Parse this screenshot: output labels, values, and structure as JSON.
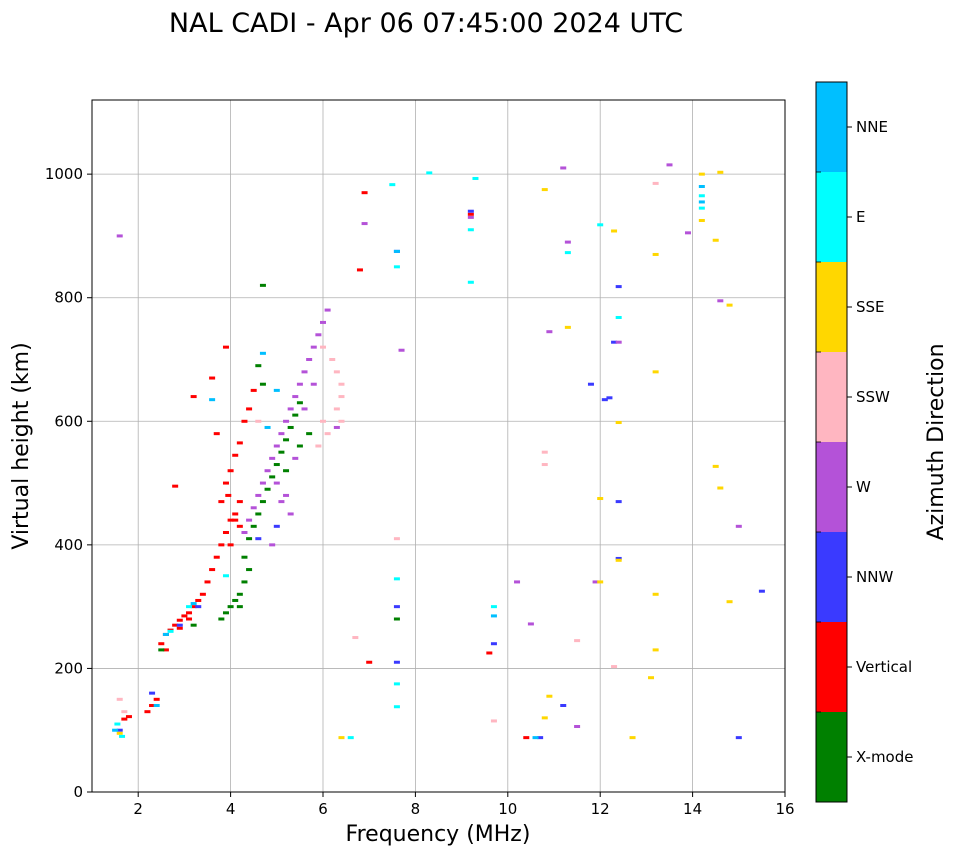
{
  "chart_data": {
    "type": "scatter",
    "title": "NAL CADI - Apr 06 07:45:00 2024 UTC",
    "xlabel": "Frequency (MHz)",
    "ylabel": "Virtual height (km)",
    "xlim": [
      1,
      16
    ],
    "ylim": [
      0,
      1120
    ],
    "xticks": [
      "2",
      "4",
      "6",
      "8",
      "10",
      "12",
      "14",
      "16"
    ],
    "yticks": [
      "0",
      "200",
      "400",
      "600",
      "800",
      "1000"
    ],
    "grid": true,
    "colorbar": {
      "label": "Azimuth Direction",
      "categories": [
        {
          "name": "X-mode",
          "color": "#008000"
        },
        {
          "name": "Vertical",
          "color": "#ff0000"
        },
        {
          "name": "NNW",
          "color": "#3a3aff"
        },
        {
          "name": "W",
          "color": "#b452d8"
        },
        {
          "name": "SSW",
          "color": "#ffb6c1"
        },
        {
          "name": "SSE",
          "color": "#ffd700"
        },
        {
          "name": "E",
          "color": "#00ffff"
        },
        {
          "name": "NNE",
          "color": "#00bfff"
        }
      ]
    },
    "series": [
      {
        "name": "Vertical",
        "points": [
          [
            1.7,
            118
          ],
          [
            1.8,
            122
          ],
          [
            2.2,
            130
          ],
          [
            2.3,
            140
          ],
          [
            2.4,
            150
          ],
          [
            2.5,
            240
          ],
          [
            2.6,
            255
          ],
          [
            2.7,
            262
          ],
          [
            2.8,
            270
          ],
          [
            2.9,
            278
          ],
          [
            3.0,
            285
          ],
          [
            3.1,
            290
          ],
          [
            3.2,
            300
          ],
          [
            3.3,
            310
          ],
          [
            3.4,
            320
          ],
          [
            3.5,
            340
          ],
          [
            3.6,
            360
          ],
          [
            3.7,
            380
          ],
          [
            3.8,
            400
          ],
          [
            3.9,
            420
          ],
          [
            4.0,
            440
          ],
          [
            4.1,
            450
          ],
          [
            4.2,
            470
          ],
          [
            3.9,
            500
          ],
          [
            4.0,
            520
          ],
          [
            4.1,
            545
          ],
          [
            4.2,
            565
          ],
          [
            3.7,
            580
          ],
          [
            4.3,
            600
          ],
          [
            4.4,
            620
          ],
          [
            4.5,
            650
          ],
          [
            3.6,
            670
          ],
          [
            4.1,
            440
          ],
          [
            4.0,
            400
          ],
          [
            3.8,
            470
          ],
          [
            3.95,
            480
          ],
          [
            4.2,
            430
          ],
          [
            2.6,
            230
          ],
          [
            2.9,
            265
          ],
          [
            3.1,
            280
          ],
          [
            6.9,
            970
          ],
          [
            6.8,
            845
          ],
          [
            7.0,
            210
          ],
          [
            9.2,
            935
          ],
          [
            9.6,
            225
          ],
          [
            10.4,
            88
          ],
          [
            2.8,
            495
          ],
          [
            3.2,
            640
          ],
          [
            3.9,
            720
          ]
        ]
      },
      {
        "name": "X-mode",
        "points": [
          [
            3.8,
            280
          ],
          [
            3.9,
            290
          ],
          [
            4.0,
            300
          ],
          [
            4.1,
            310
          ],
          [
            4.2,
            320
          ],
          [
            4.3,
            340
          ],
          [
            4.4,
            360
          ],
          [
            4.3,
            380
          ],
          [
            4.4,
            410
          ],
          [
            4.5,
            430
          ],
          [
            4.6,
            450
          ],
          [
            4.7,
            470
          ],
          [
            4.8,
            490
          ],
          [
            4.9,
            510
          ],
          [
            5.0,
            530
          ],
          [
            5.1,
            550
          ],
          [
            5.2,
            570
          ],
          [
            5.3,
            590
          ],
          [
            5.4,
            610
          ],
          [
            5.5,
            630
          ],
          [
            4.7,
            660
          ],
          [
            4.6,
            690
          ],
          [
            4.7,
            820
          ],
          [
            5.5,
            560
          ],
          [
            5.7,
            580
          ],
          [
            5.2,
            520
          ],
          [
            3.2,
            270
          ],
          [
            2.5,
            230
          ],
          [
            7.6,
            280
          ],
          [
            4.2,
            300
          ]
        ]
      },
      {
        "name": "NNW",
        "points": [
          [
            1.6,
            100
          ],
          [
            2.3,
            160
          ],
          [
            7.6,
            875
          ],
          [
            7.6,
            300
          ],
          [
            7.6,
            210
          ],
          [
            9.7,
            240
          ],
          [
            10.7,
            88
          ],
          [
            11.2,
            140
          ],
          [
            11.8,
            660
          ],
          [
            12.1,
            635
          ],
          [
            12.4,
            818
          ],
          [
            12.4,
            470
          ],
          [
            12.4,
            378
          ],
          [
            12.3,
            728
          ],
          [
            12.2,
            638
          ],
          [
            15.0,
            88
          ],
          [
            15.5,
            325
          ],
          [
            9.2,
            940
          ],
          [
            4.6,
            410
          ],
          [
            5.0,
            430
          ],
          [
            2.9,
            270
          ],
          [
            3.3,
            300
          ]
        ]
      },
      {
        "name": "W",
        "points": [
          [
            4.3,
            420
          ],
          [
            4.4,
            440
          ],
          [
            4.5,
            460
          ],
          [
            4.6,
            480
          ],
          [
            4.7,
            500
          ],
          [
            4.8,
            520
          ],
          [
            4.9,
            540
          ],
          [
            5.0,
            560
          ],
          [
            5.1,
            580
          ],
          [
            5.2,
            600
          ],
          [
            5.3,
            620
          ],
          [
            5.4,
            640
          ],
          [
            5.5,
            660
          ],
          [
            5.6,
            680
          ],
          [
            5.7,
            700
          ],
          [
            5.8,
            720
          ],
          [
            5.9,
            740
          ],
          [
            6.0,
            760
          ],
          [
            6.1,
            780
          ],
          [
            5.0,
            500
          ],
          [
            5.2,
            480
          ],
          [
            5.4,
            540
          ],
          [
            5.6,
            620
          ],
          [
            5.8,
            660
          ],
          [
            5.3,
            450
          ],
          [
            5.1,
            470
          ],
          [
            4.9,
            400
          ],
          [
            6.3,
            590
          ],
          [
            6.9,
            920
          ],
          [
            7.7,
            715
          ],
          [
            9.2,
            930
          ],
          [
            10.2,
            340
          ],
          [
            10.5,
            272
          ],
          [
            10.9,
            745
          ],
          [
            11.2,
            1010
          ],
          [
            11.3,
            890
          ],
          [
            11.5,
            106
          ],
          [
            11.9,
            340
          ],
          [
            12.4,
            728
          ],
          [
            13.5,
            1015
          ],
          [
            13.9,
            905
          ],
          [
            14.6,
            795
          ],
          [
            15.0,
            430
          ],
          [
            1.6,
            900
          ]
        ]
      },
      {
        "name": "SSW",
        "points": [
          [
            6.3,
            620
          ],
          [
            6.4,
            640
          ],
          [
            6.4,
            660
          ],
          [
            6.3,
            680
          ],
          [
            6.2,
            700
          ],
          [
            6.0,
            720
          ],
          [
            6.4,
            600
          ],
          [
            5.9,
            560
          ],
          [
            6.1,
            580
          ],
          [
            6.0,
            600
          ],
          [
            4.6,
            600
          ],
          [
            1.6,
            150
          ],
          [
            1.7,
            130
          ],
          [
            6.7,
            250
          ],
          [
            7.6,
            410
          ],
          [
            9.7,
            115
          ],
          [
            10.8,
            550
          ],
          [
            10.8,
            530
          ],
          [
            11.5,
            245
          ],
          [
            12.3,
            203
          ],
          [
            13.2,
            985
          ]
        ]
      },
      {
        "name": "SSE",
        "points": [
          [
            1.6,
            95
          ],
          [
            6.4,
            88
          ],
          [
            10.8,
            975
          ],
          [
            10.9,
            155
          ],
          [
            10.8,
            120
          ],
          [
            11.3,
            752
          ],
          [
            12.0,
            475
          ],
          [
            12.0,
            340
          ],
          [
            12.3,
            908
          ],
          [
            12.4,
            598
          ],
          [
            12.4,
            375
          ],
          [
            12.7,
            88
          ],
          [
            13.2,
            870
          ],
          [
            13.2,
            680
          ],
          [
            13.2,
            320
          ],
          [
            13.2,
            230
          ],
          [
            13.1,
            185
          ],
          [
            14.5,
            527
          ],
          [
            14.6,
            492
          ],
          [
            14.8,
            308
          ],
          [
            14.6,
            1003
          ],
          [
            14.5,
            893
          ],
          [
            14.8,
            788
          ],
          [
            14.2,
            925
          ],
          [
            14.2,
            1000
          ]
        ]
      },
      {
        "name": "E",
        "points": [
          [
            1.55,
            110
          ],
          [
            1.65,
            90
          ],
          [
            6.6,
            88
          ],
          [
            7.5,
            983
          ],
          [
            7.6,
            850
          ],
          [
            7.6,
            345
          ],
          [
            7.6,
            175
          ],
          [
            7.6,
            138
          ],
          [
            8.3,
            1002
          ],
          [
            9.3,
            993
          ],
          [
            9.2,
            910
          ],
          [
            9.2,
            825
          ],
          [
            9.7,
            300
          ],
          [
            11.3,
            873
          ],
          [
            12.0,
            918
          ],
          [
            12.4,
            768
          ],
          [
            14.2,
            945
          ],
          [
            14.2,
            965
          ],
          [
            2.7,
            260
          ],
          [
            3.1,
            300
          ],
          [
            3.9,
            350
          ]
        ]
      },
      {
        "name": "NNE",
        "points": [
          [
            1.5,
            100
          ],
          [
            2.4,
            140
          ],
          [
            2.6,
            255
          ],
          [
            3.2,
            305
          ],
          [
            3.6,
            635
          ],
          [
            4.7,
            710
          ],
          [
            4.8,
            590
          ],
          [
            5.0,
            650
          ],
          [
            7.6,
            875
          ],
          [
            9.7,
            285
          ],
          [
            10.6,
            88
          ],
          [
            14.2,
            980
          ],
          [
            14.2,
            955
          ]
        ]
      }
    ]
  }
}
